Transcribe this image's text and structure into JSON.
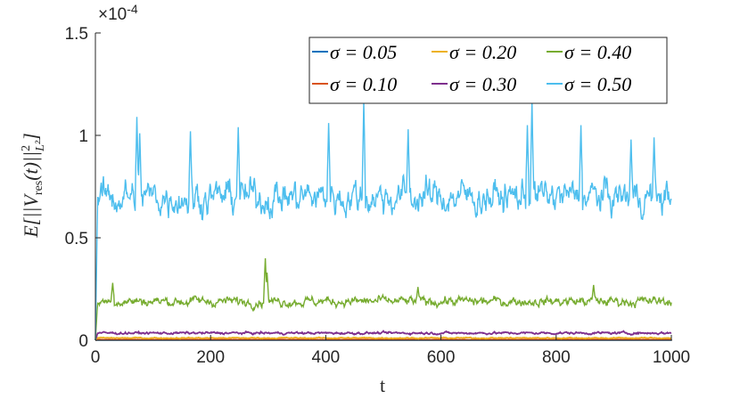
{
  "chart_data": {
    "type": "line",
    "xlabel": "t",
    "ylabel": "E[||V_res(t)||²_L²]",
    "ylabel_parts": {
      "main": "E[||V",
      "sub1": "res",
      "mid": "(t)||",
      "sup": "2",
      "sub2": "L²",
      "end": "]"
    },
    "exponent_label": "×10",
    "exponent_power": "-4",
    "xlim": [
      0,
      1000
    ],
    "ylim": [
      0,
      1.5
    ],
    "y_scale_factor": 0.0001,
    "xticks": [
      0,
      200,
      400,
      600,
      800,
      1000
    ],
    "xtick_labels": [
      "0",
      "200",
      "400",
      "600",
      "800",
      "1000"
    ],
    "yticks": [
      0,
      0.5,
      1,
      1.5
    ],
    "ytick_labels": [
      "0",
      "0.5",
      "1",
      "1.5"
    ],
    "grid": false,
    "legend_position": "top-right",
    "series": [
      {
        "name": "σ = 0.05",
        "color": "#0072BD",
        "mean": 0.0007,
        "noise": 0.0002,
        "spikes": []
      },
      {
        "name": "σ = 0.10",
        "color": "#D95319",
        "mean": 0.003,
        "noise": 0.0008,
        "spikes": []
      },
      {
        "name": "σ = 0.20",
        "color": "#EDB120",
        "mean": 0.011,
        "noise": 0.003,
        "spikes": []
      },
      {
        "name": "σ = 0.30",
        "color": "#7E2F8E",
        "mean": 0.035,
        "noise": 0.006,
        "spikes": []
      },
      {
        "name": "σ = 0.40",
        "color": "#77AC30",
        "mean": 0.19,
        "noise": 0.025,
        "spikes": [
          [
            30,
            0.28
          ],
          [
            295,
            0.4
          ],
          [
            298,
            0.33
          ],
          [
            560,
            0.26
          ],
          [
            865,
            0.27
          ]
        ]
      },
      {
        "name": "σ = 0.50",
        "color": "#4DBEEE",
        "mean": 0.7,
        "noise": 0.09,
        "spikes": [
          [
            72,
            1.09
          ],
          [
            77,
            1.01
          ],
          [
            165,
            1.02
          ],
          [
            248,
            1.04
          ],
          [
            405,
            1.06
          ],
          [
            466,
            1.17
          ],
          [
            543,
            1.03
          ],
          [
            750,
            1.05
          ],
          [
            758,
            1.17
          ],
          [
            843,
            1.05
          ],
          [
            930,
            0.98
          ],
          [
            970,
            0.99
          ]
        ]
      }
    ],
    "legend_layout": [
      [
        "σ = 0.05",
        "σ = 0.20",
        "σ = 0.40"
      ],
      [
        "σ = 0.10",
        "σ = 0.30",
        "σ = 0.50"
      ]
    ]
  }
}
